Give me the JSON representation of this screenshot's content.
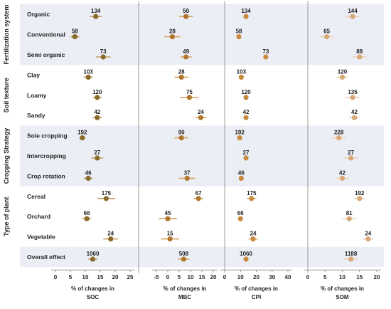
{
  "chart_data": {
    "type": "scatter",
    "style": "forest-plot",
    "row_labels": [
      "Organic",
      "Conventional",
      "Semi organic",
      "Clay",
      "Loamy",
      "Sandy",
      "Sole cropping",
      "Intercropping",
      "Crop rotation",
      "Cereal",
      "Orchard",
      "Vegetable",
      "Overall effect"
    ],
    "groups": [
      {
        "label": "Fertilization system",
        "rows": [
          0,
          1,
          2
        ],
        "shaded": true
      },
      {
        "label": "Soil texture",
        "rows": [
          3,
          4,
          5
        ],
        "shaded": false
      },
      {
        "label": "Cropping Strategy",
        "rows": [
          6,
          7,
          8
        ],
        "shaded": true
      },
      {
        "label": "Type of plant",
        "rows": [
          9,
          10,
          11
        ],
        "shaded": false
      },
      {
        "label": "",
        "rows": [
          12
        ],
        "shaded": true
      }
    ],
    "panels": [
      {
        "xlabel_line1": "% of changes in",
        "xlabel_line2": "SOC",
        "xlim": [
          0,
          25
        ],
        "xticks": [
          0,
          5,
          10,
          15,
          20,
          25
        ],
        "color": "#8a6a2a",
        "light_color": "#c3a066",
        "rows": [
          {
            "mean": 13.5,
            "low": 11.5,
            "high": 15.5,
            "n": "134"
          },
          {
            "mean": 6.5,
            "low": 5.0,
            "high": 8.0,
            "n": "58"
          },
          {
            "mean": 16.0,
            "low": 13.5,
            "high": 18.5,
            "n": "73"
          },
          {
            "mean": 11.0,
            "low": 9.5,
            "high": 12.5,
            "n": "103"
          },
          {
            "mean": 14.0,
            "low": 12.5,
            "high": 15.5,
            "n": "120"
          },
          {
            "mean": 14.0,
            "low": 12.5,
            "high": 15.5,
            "n": "42"
          },
          {
            "mean": 9.0,
            "low": 8.0,
            "high": 10.0,
            "n": "192"
          },
          {
            "mean": 14.0,
            "low": 12.0,
            "high": 16.0,
            "n": "27"
          },
          {
            "mean": 11.0,
            "low": 9.5,
            "high": 12.5,
            "n": "46"
          },
          {
            "mean": 17.0,
            "low": 14.0,
            "high": 20.0,
            "n": "175"
          },
          {
            "mean": 10.5,
            "low": 9.0,
            "high": 12.0,
            "n": "66"
          },
          {
            "mean": 18.5,
            "low": 16.0,
            "high": 21.0,
            "n": "24"
          },
          {
            "mean": 12.5,
            "low": 11.0,
            "high": 14.0,
            "n": "1060"
          }
        ]
      },
      {
        "xlabel_line1": "% of changes in",
        "xlabel_line2": "MBC",
        "xlim": [
          -5,
          20
        ],
        "xticks": [
          -5,
          0,
          5,
          10,
          15,
          20
        ],
        "color": "#b0762d",
        "light_color": "#d9a05a",
        "rows": [
          {
            "mean": 8.0,
            "low": 5.0,
            "high": 11.0,
            "n": "50"
          },
          {
            "mean": 2.0,
            "low": -1.5,
            "high": 5.5,
            "n": "28"
          },
          {
            "mean": 8.0,
            "low": 5.5,
            "high": 10.5,
            "n": "49"
          },
          {
            "mean": 6.0,
            "low": 3.0,
            "high": 9.0,
            "n": "28"
          },
          {
            "mean": 9.5,
            "low": 5.5,
            "high": 13.5,
            "n": "75"
          },
          {
            "mean": 14.5,
            "low": 12.0,
            "high": 17.0,
            "n": "24"
          },
          {
            "mean": 6.0,
            "low": 3.0,
            "high": 9.0,
            "n": "90"
          },
          {
            "mean": 8.5,
            "low": 5.0,
            "high": 12.0,
            "n": "37"
          },
          {
            "mean": 13.5,
            "low": 11.5,
            "high": 15.5,
            "n": "67"
          },
          {
            "mean": 0.0,
            "low": -4.0,
            "high": 4.0,
            "n": "45"
          },
          {
            "mean": 1.0,
            "low": -3.0,
            "high": 5.0,
            "n": "15"
          },
          {
            "mean": 7.0,
            "low": 4.5,
            "high": 9.5,
            "n": "508"
          }
        ],
        "row_index": [
          0,
          1,
          2,
          3,
          4,
          5,
          6,
          8,
          9,
          10,
          11,
          12
        ]
      },
      {
        "xlabel_line1": "% of changes in",
        "xlabel_line2": "CPI",
        "xlim": [
          0,
          40
        ],
        "xticks": [
          0,
          10,
          20,
          30,
          40
        ],
        "color": "#c98a3e",
        "light_color": "#e6b67a",
        "rows": [
          {
            "mean": 13.5,
            "low": 12.0,
            "high": 15.0,
            "n": "134"
          },
          {
            "mean": 9.0,
            "low": 8.0,
            "high": 10.0,
            "n": "58"
          },
          {
            "mean": 26.0,
            "low": 24.5,
            "high": 27.5,
            "n": "73"
          },
          {
            "mean": 10.5,
            "low": 9.5,
            "high": 11.5,
            "n": "103"
          },
          {
            "mean": 13.5,
            "low": 12.0,
            "high": 15.0,
            "n": "120"
          },
          {
            "mean": 13.5,
            "low": 12.0,
            "high": 15.0,
            "n": "42"
          },
          {
            "mean": 9.5,
            "low": 8.0,
            "high": 11.0,
            "n": "192"
          },
          {
            "mean": 13.5,
            "low": 12.0,
            "high": 15.0,
            "n": "27"
          },
          {
            "mean": 10.5,
            "low": 9.0,
            "high": 12.0,
            "n": "46"
          },
          {
            "mean": 17.0,
            "low": 14.0,
            "high": 20.0,
            "n": "175"
          },
          {
            "mean": 10.0,
            "low": 9.0,
            "high": 11.0,
            "n": "66"
          },
          {
            "mean": 18.0,
            "low": 15.0,
            "high": 21.0,
            "n": "24"
          },
          {
            "mean": 13.5,
            "low": 12.0,
            "high": 15.0,
            "n": "1060"
          }
        ]
      },
      {
        "xlabel_line1": "% of changes in",
        "xlabel_line2": "SOM",
        "xlim": [
          0,
          20
        ],
        "xticks": [
          0,
          5,
          10,
          15,
          20
        ],
        "color": "#d8a877",
        "light_color": "#ecd0b0",
        "rows": [
          {
            "mean": 13.0,
            "low": 11.0,
            "high": 15.0,
            "n": "144"
          },
          {
            "mean": 5.5,
            "low": 3.5,
            "high": 7.5,
            "n": "65"
          },
          {
            "mean": 15.0,
            "low": 13.0,
            "high": 17.0,
            "n": "88"
          },
          {
            "mean": 10.0,
            "low": 8.5,
            "high": 11.5,
            "n": "120"
          },
          {
            "mean": 13.0,
            "low": 11.0,
            "high": 15.0,
            "n": "135"
          },
          {
            "mean": 13.5,
            "low": 12.0,
            "high": 15.0,
            "n": "42"
          },
          {
            "mean": 9.0,
            "low": 7.0,
            "high": 11.0,
            "n": "228"
          },
          {
            "mean": 12.5,
            "low": 10.5,
            "high": 14.5,
            "n": "27"
          },
          {
            "mean": 10.0,
            "low": 8.0,
            "high": 12.0,
            "n": "42"
          },
          {
            "mean": 15.0,
            "low": 13.5,
            "high": 16.5,
            "n": "192"
          },
          {
            "mean": 12.0,
            "low": 10.0,
            "high": 14.0,
            "n": "81"
          },
          {
            "mean": 17.5,
            "low": 16.0,
            "high": 19.0,
            "n": "24"
          },
          {
            "mean": 12.5,
            "low": 10.5,
            "high": 14.5,
            "n": "1188"
          }
        ]
      }
    ],
    "grid": false,
    "legend": "none"
  }
}
